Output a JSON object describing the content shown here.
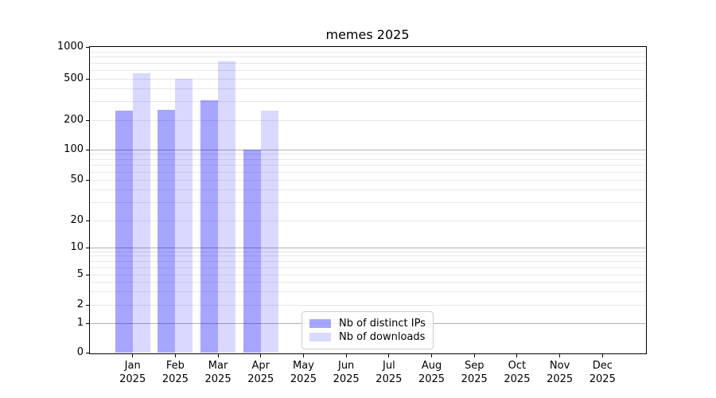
{
  "chart_data": {
    "type": "bar",
    "title": "memes 2025",
    "categories": [
      "Jan",
      "Feb",
      "Mar",
      "Apr",
      "May",
      "Jun",
      "Jul",
      "Aug",
      "Sep",
      "Oct",
      "Nov",
      "Dec"
    ],
    "category_year": "2025",
    "series": [
      {
        "name": "Nb of distinct IPs",
        "color": "rgba(0,0,255,0.35)",
        "values": [
          245,
          250,
          310,
          100,
          null,
          null,
          null,
          null,
          null,
          null,
          null,
          null
        ]
      },
      {
        "name": "Nb of downloads",
        "color": "rgba(0,0,255,0.15)",
        "values": [
          565,
          500,
          730,
          245,
          null,
          null,
          null,
          null,
          null,
          null,
          null,
          null
        ]
      }
    ],
    "xlabel": "",
    "ylabel": "",
    "yscale": "symlog",
    "ylim": [
      0,
      1000
    ],
    "yticks": [
      0,
      1,
      2,
      5,
      10,
      20,
      50,
      100,
      200,
      500,
      1000
    ],
    "minor_gridline_values": [
      2,
      3,
      4,
      5,
      6,
      7,
      8,
      9,
      20,
      30,
      40,
      50,
      60,
      70,
      80,
      90,
      200,
      300,
      400,
      500,
      600,
      700,
      800,
      900
    ],
    "major_gridline_values": [
      1,
      10,
      100
    ],
    "grid": "both",
    "legend_position": "lower-center"
  },
  "colors": {
    "background": "#ffffff",
    "spine": "#000000",
    "text": "#000000",
    "major_grid": "#b0b0b0",
    "minor_grid": "#e7e7e7",
    "bar_distinct_ips": "rgba(0,0,255,0.35)",
    "bar_downloads": "rgba(0,0,255,0.15)"
  }
}
